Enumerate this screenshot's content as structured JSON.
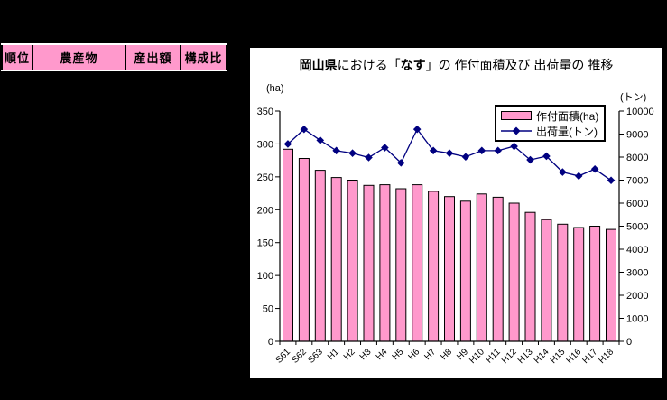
{
  "window": {
    "background": "#000000"
  },
  "table": {
    "header_bg": "#FF99CC",
    "headers": [
      "順位",
      "農産物",
      "産出額",
      "構成比"
    ]
  },
  "chart": {
    "title_parts": [
      "岡山県",
      "における「",
      "なす",
      "」の 作付面積及び 出荷量の 推移"
    ],
    "unit_left": "(ha)",
    "unit_right": "(トン)",
    "legend": {
      "area": "作付面積(ha)",
      "shipment": "出荷量(トン)"
    },
    "colors": {
      "bar_fill": "#FF99CC",
      "bar_border": "#000000",
      "line": "#000080",
      "axis": "#000000",
      "panel_bg": "#FFFFFF",
      "page_bg": "#000000"
    }
  },
  "chart_data": {
    "type": "bar+line",
    "title": "岡山県における「なす」の作付面積及び出荷量の推移",
    "categories": [
      "S61",
      "S62",
      "S63",
      "H1",
      "H2",
      "H3",
      "H4",
      "H5",
      "H6",
      "H7",
      "H8",
      "H9",
      "H10",
      "H11",
      "H12",
      "H13",
      "H14",
      "H15",
      "H16",
      "H17",
      "H18"
    ],
    "series": [
      {
        "name": "作付面積(ha)",
        "type": "bar",
        "axis": "left",
        "values": [
          292,
          278,
          260,
          249,
          245,
          237,
          238,
          232,
          238,
          228,
          220,
          213,
          224,
          219,
          210,
          196,
          185,
          178,
          173,
          175,
          170
        ]
      },
      {
        "name": "出荷量(トン)",
        "type": "line",
        "axis": "right",
        "values": [
          8570,
          9210,
          8730,
          8280,
          8170,
          7980,
          8410,
          7750,
          9210,
          8280,
          8170,
          8010,
          8280,
          8280,
          8470,
          7880,
          8040,
          7350,
          7180,
          7480,
          6990
        ]
      }
    ],
    "ylabel_left": "(ha)",
    "ylabel_right": "(トン)",
    "ylim_left": [
      0,
      350
    ],
    "ylim_right": [
      0,
      10000
    ],
    "yticks_left": [
      0,
      50,
      100,
      150,
      200,
      250,
      300,
      350
    ],
    "yticks_right": [
      0,
      1000,
      2000,
      3000,
      4000,
      5000,
      6000,
      7000,
      8000,
      9000,
      10000
    ],
    "grid": false,
    "legend_position": "top-right",
    "x_label_rotation": -45
  }
}
